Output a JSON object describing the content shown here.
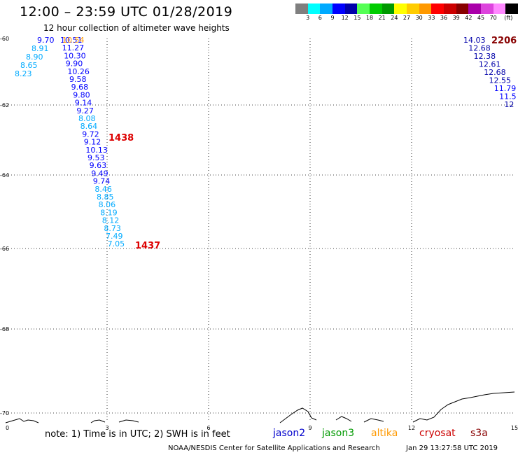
{
  "header": {
    "title": "12:00 – 23:59 UTC 01/28/2019",
    "subtitle": "12 hour collection of altimeter wave heights"
  },
  "colorbar": {
    "colors": [
      "#7f7f7f",
      "#00ffff",
      "#00aaff",
      "#0000ff",
      "#0000aa",
      "#55ff55",
      "#00cc00",
      "#009900",
      "#ffff00",
      "#ffcc00",
      "#ff9900",
      "#ff0000",
      "#cc0000",
      "#880000",
      "#aa00aa",
      "#dd44dd",
      "#ff88ff",
      "#000000"
    ],
    "labels": [
      "3",
      "6",
      "9",
      "12",
      "15",
      "18",
      "21",
      "24",
      "27",
      "30",
      "33",
      "36",
      "39",
      "42",
      "45",
      "70",
      "(ft)"
    ]
  },
  "axes": {
    "x_ticks": [
      "0",
      "3",
      "6",
      "9",
      "12",
      "15"
    ],
    "y_ticks": [
      "-60",
      "-62",
      "-64",
      "-66",
      "-68",
      "-70"
    ]
  },
  "tracks": {
    "left_col_a": [
      "9.70",
      "8.91",
      "8.90",
      "8.65",
      "8.23"
    ],
    "left_col_b": [
      "10.51",
      "11.27",
      "10.30",
      "9.90",
      "10.26",
      "9.58",
      "9.68",
      "9.80",
      "9.14",
      "9.27",
      "8.08",
      "8.64",
      "9.72",
      "9.12",
      "10.13",
      "9.53",
      "9.63",
      "9.49",
      "9.74",
      "8.46",
      "8.85",
      "8.06",
      "8.19",
      "8.12",
      "8.73",
      "7.49",
      "7.05"
    ],
    "top_label": "10.54",
    "time_a": "1438",
    "time_b": "1437",
    "right_col": [
      "14.03",
      "12.68",
      "12.38",
      "12.61",
      "12.68",
      "12.55",
      "11.79",
      "11.5",
      "12"
    ],
    "time_c": "2206"
  },
  "footer": {
    "note": "note: 1) Time is in UTC; 2) SWH is in feet",
    "legend": [
      {
        "name": "jason2",
        "color": "#0000cc"
      },
      {
        "name": "jason3",
        "color": "#009900"
      },
      {
        "name": "altika",
        "color": "#ff9900"
      },
      {
        "name": "cryosat",
        "color": "#cc0000"
      },
      {
        "name": "s3a",
        "color": "#880000"
      }
    ],
    "credit": "NOAA/NESDIS Center for Satellite Applications and Research",
    "stamp": "Jan 29 13:27:58 UTC 2019"
  }
}
